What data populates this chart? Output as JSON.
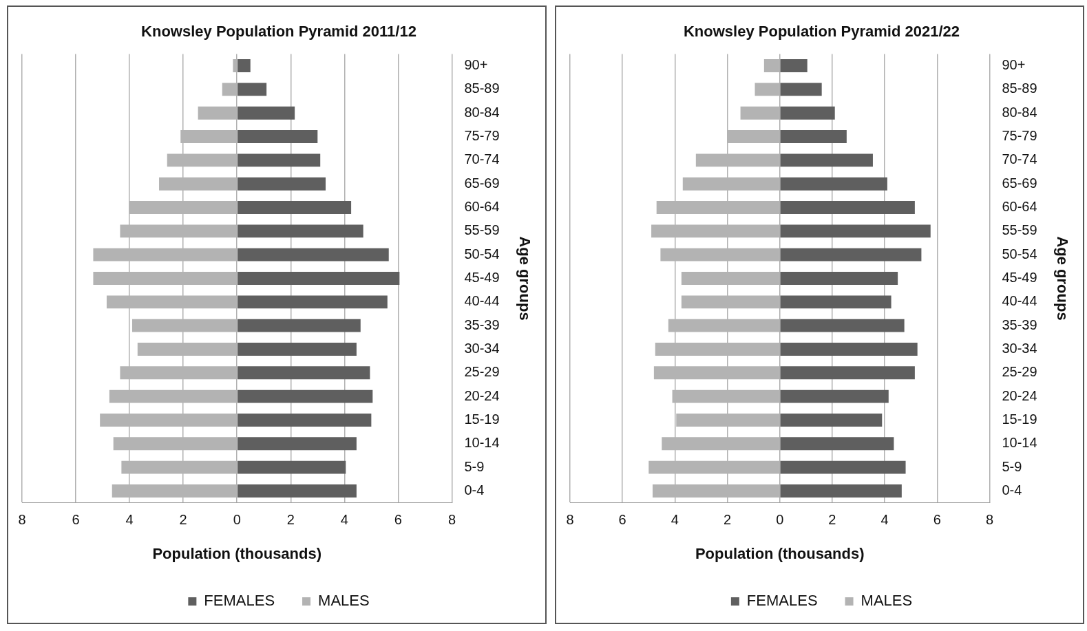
{
  "chart_data": [
    {
      "type": "bar",
      "title": "Knowsley Population Pyramid 2011/12",
      "xlabel": "Population (thousands)",
      "ylabel": "Age groups",
      "orientation": "horizontal",
      "stacked": true,
      "categories": [
        "90+",
        "85-89",
        "80-84",
        "75-79",
        "70-74",
        "65-69",
        "60-64",
        "55-59",
        "50-54",
        "45-49",
        "40-44",
        "35-39",
        "30-34",
        "25-29",
        "20-24",
        "15-19",
        "10-14",
        "5-9",
        "0-4"
      ],
      "series": [
        {
          "name": "FEMALES",
          "color": "#5f5f5f",
          "values": [
            0.5,
            1.1,
            2.15,
            3.0,
            3.1,
            3.3,
            4.25,
            4.7,
            5.65,
            6.05,
            5.6,
            4.6,
            4.45,
            4.95,
            5.05,
            5.0,
            4.45,
            4.05,
            4.45
          ]
        },
        {
          "name": "MALES",
          "color": "#b3b3b3",
          "values": [
            -0.15,
            -0.55,
            -1.45,
            -2.1,
            -2.6,
            -2.9,
            -4.0,
            -4.35,
            -5.35,
            -5.35,
            -4.85,
            -3.9,
            -3.7,
            -4.35,
            -4.75,
            -5.1,
            -4.6,
            -4.3,
            -4.65
          ]
        }
      ],
      "xlim": [
        -8,
        8
      ],
      "xticks": [
        {
          "value": -8,
          "label": "8"
        },
        {
          "value": -6,
          "label": "6"
        },
        {
          "value": -4,
          "label": "4"
        },
        {
          "value": -2,
          "label": "2"
        },
        0,
        2,
        4,
        6,
        8
      ],
      "grid": "x",
      "legend": "bottom"
    },
    {
      "type": "bar",
      "title": "Knowsley Population Pyramid 2021/22",
      "xlabel": "Population (thousands)",
      "ylabel": "Age groups",
      "orientation": "horizontal",
      "stacked": true,
      "categories": [
        "90+",
        "85-89",
        "80-84",
        "75-79",
        "70-74",
        "65-69",
        "60-64",
        "55-59",
        "50-54",
        "45-49",
        "40-44",
        "35-39",
        "30-34",
        "25-29",
        "20-24",
        "15-19",
        "10-14",
        "5-9",
        "0-4"
      ],
      "series": [
        {
          "name": "FEMALES",
          "color": "#5f5f5f",
          "values": [
            1.05,
            1.6,
            2.1,
            2.55,
            3.55,
            4.1,
            5.15,
            5.75,
            5.4,
            4.5,
            4.25,
            4.75,
            5.25,
            5.15,
            4.15,
            3.9,
            4.35,
            4.8,
            4.65
          ]
        },
        {
          "name": "MALES",
          "color": "#b3b3b3",
          "values": [
            -0.6,
            -0.95,
            -1.5,
            -2.0,
            -3.2,
            -3.7,
            -4.7,
            -4.9,
            -4.55,
            -3.75,
            -3.75,
            -4.25,
            -4.75,
            -4.8,
            -4.1,
            -3.95,
            -4.5,
            -5.0,
            -4.85
          ]
        }
      ],
      "xlim": [
        -8,
        8
      ],
      "xticks": [
        {
          "value": -8,
          "label": "8"
        },
        {
          "value": -6,
          "label": "6"
        },
        {
          "value": -4,
          "label": "4"
        },
        {
          "value": -2,
          "label": "2"
        },
        0,
        2,
        4,
        6,
        8
      ],
      "grid": "x",
      "legend": "bottom"
    }
  ]
}
